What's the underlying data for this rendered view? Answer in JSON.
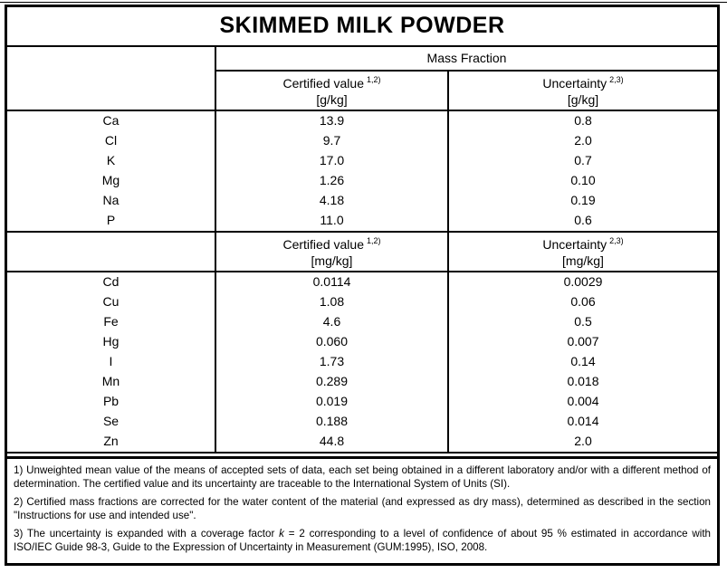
{
  "title": "SKIMMED MILK POWDER",
  "colors": {
    "ink": "#000000",
    "paper": "#ffffff"
  },
  "table": {
    "group_header": "Mass Fraction",
    "sections": [
      {
        "certified_header": {
          "label": "Certified value",
          "sup": "1,2)",
          "unit": "[g/kg]"
        },
        "uncertainty_header": {
          "label": "Uncertainty",
          "sup": "2,3)",
          "unit": "[g/kg]"
        },
        "rows": [
          {
            "element": "Ca",
            "certified": "13.9",
            "uncertainty": "0.8"
          },
          {
            "element": "Cl",
            "certified": "9.7",
            "uncertainty": "2.0"
          },
          {
            "element": "K",
            "certified": "17.0",
            "uncertainty": "0.7"
          },
          {
            "element": "Mg",
            "certified": "1.26",
            "uncertainty": "0.10"
          },
          {
            "element": "Na",
            "certified": "4.18",
            "uncertainty": "0.19"
          },
          {
            "element": "P",
            "certified": "11.0",
            "uncertainty": "0.6"
          }
        ]
      },
      {
        "certified_header": {
          "label": "Certified value",
          "sup": "1,2)",
          "unit": "[mg/kg]"
        },
        "uncertainty_header": {
          "label": "Uncertainty",
          "sup": "2,3)",
          "unit": "[mg/kg]"
        },
        "rows": [
          {
            "element": "Cd",
            "certified": "0.0114",
            "uncertainty": "0.0029"
          },
          {
            "element": "Cu",
            "certified": "1.08",
            "uncertainty": "0.06"
          },
          {
            "element": "Fe",
            "certified": "4.6",
            "uncertainty": "0.5"
          },
          {
            "element": "Hg",
            "certified": "0.060",
            "uncertainty": "0.007"
          },
          {
            "element": "I",
            "certified": "1.73",
            "uncertainty": "0.14"
          },
          {
            "element": "Mn",
            "certified": "0.289",
            "uncertainty": "0.018"
          },
          {
            "element": "Pb",
            "certified": "0.019",
            "uncertainty": "0.004"
          },
          {
            "element": "Se",
            "certified": "0.188",
            "uncertainty": "0.014"
          },
          {
            "element": "Zn",
            "certified": "44.8",
            "uncertainty": "2.0"
          }
        ]
      }
    ]
  },
  "footnotes": {
    "note1": "1) Unweighted mean value of the means of accepted sets of data, each set being obtained in a different laboratory and/or with a different method of determination. The certified value and its uncertainty are traceable to the International System of Units (SI).",
    "note2": "2) Certified mass fractions are corrected for the water content of the material (and expressed as dry mass), determined as described in the section \"Instructions for use and intended use\".",
    "note3": {
      "before": "3) The uncertainty is expanded with a coverage factor ",
      "italic": "k",
      "after": " = 2 corresponding to a level of confidence of about 95 % estimated in accordance with ISO/IEC Guide 98-3, Guide to the Expression of Uncertainty in Measurement (GUM:1995), ISO, 2008."
    }
  }
}
